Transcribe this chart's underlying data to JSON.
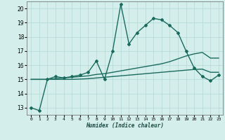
{
  "title": "",
  "xlabel": "Humidex (Indice chaleur)",
  "ylabel": "",
  "background_color": "#d4eeec",
  "grid_color": "#b8dbd9",
  "line_color": "#1a6b5e",
  "xlim": [
    -0.5,
    23.5
  ],
  "ylim": [
    12.5,
    20.5
  ],
  "yticks": [
    13,
    14,
    15,
    16,
    17,
    18,
    19,
    20
  ],
  "xticks": [
    0,
    1,
    2,
    3,
    4,
    5,
    6,
    7,
    8,
    9,
    10,
    11,
    12,
    13,
    14,
    15,
    16,
    17,
    18,
    19,
    20,
    21,
    22,
    23
  ],
  "series": [
    {
      "x": [
        0,
        1,
        2,
        3,
        4,
        5,
        6,
        7,
        8,
        9,
        10,
        11,
        12,
        13,
        14,
        15,
        16,
        17,
        18,
        19,
        20,
        21,
        22,
        23
      ],
      "y": [
        13.0,
        12.8,
        15.0,
        15.2,
        15.1,
        15.2,
        15.3,
        15.5,
        16.3,
        15.0,
        17.0,
        20.3,
        17.5,
        18.3,
        18.8,
        19.3,
        19.2,
        18.8,
        18.3,
        17.0,
        15.8,
        15.2,
        14.9,
        15.3
      ],
      "marker": "D",
      "markersize": 2.0,
      "linewidth": 1.0
    },
    {
      "x": [
        0,
        1,
        2,
        3,
        4,
        5,
        6,
        7,
        8,
        9,
        10,
        11,
        12,
        13,
        14,
        15,
        16,
        17,
        18,
        19,
        20,
        21,
        22,
        23
      ],
      "y": [
        15.0,
        15.0,
        15.0,
        15.05,
        15.1,
        15.15,
        15.2,
        15.25,
        15.35,
        15.4,
        15.5,
        15.6,
        15.7,
        15.8,
        15.9,
        16.0,
        16.1,
        16.25,
        16.45,
        16.65,
        16.8,
        16.9,
        16.5,
        16.5
      ],
      "marker": null,
      "markersize": 0,
      "linewidth": 1.0
    },
    {
      "x": [
        0,
        1,
        2,
        3,
        4,
        5,
        6,
        7,
        8,
        9,
        10,
        11,
        12,
        13,
        14,
        15,
        16,
        17,
        18,
        19,
        20,
        21,
        22,
        23
      ],
      "y": [
        15.0,
        15.0,
        15.0,
        15.0,
        15.0,
        15.0,
        15.02,
        15.05,
        15.1,
        15.15,
        15.2,
        15.25,
        15.3,
        15.35,
        15.4,
        15.45,
        15.5,
        15.55,
        15.6,
        15.65,
        15.7,
        15.72,
        15.5,
        15.5
      ],
      "marker": null,
      "markersize": 0,
      "linewidth": 1.0
    }
  ]
}
